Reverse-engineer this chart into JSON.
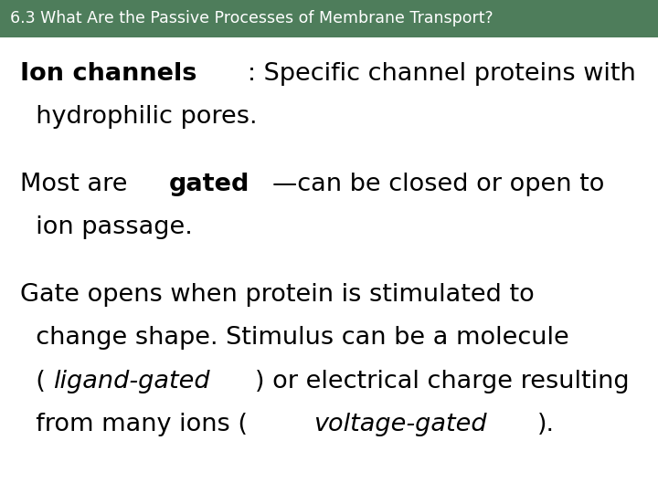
{
  "header_text": "6.3 What Are the Passive Processes of Membrane Transport?",
  "header_bg_color": "#4e7d5b",
  "header_text_color": "#ffffff",
  "body_bg_color": "#ffffff",
  "body_text_color": "#000000",
  "header_fontsize": 12.5,
  "body_fontsize": 19.5,
  "lines": [
    [
      {
        "text": "Ion channels",
        "bold": true,
        "italic": false
      },
      {
        "text": ": Specific channel proteins with",
        "bold": false,
        "italic": false
      }
    ],
    [
      {
        "text": "  hydrophilic pores.",
        "bold": false,
        "italic": false
      }
    ],
    [
      {
        "text": "",
        "bold": false,
        "italic": false
      }
    ],
    [
      {
        "text": "Most are ",
        "bold": false,
        "italic": false
      },
      {
        "text": "gated",
        "bold": true,
        "italic": false
      },
      {
        "text": "—can be closed or open to",
        "bold": false,
        "italic": false
      }
    ],
    [
      {
        "text": "  ion passage.",
        "bold": false,
        "italic": false
      }
    ],
    [
      {
        "text": "",
        "bold": false,
        "italic": false
      }
    ],
    [
      {
        "text": "Gate opens when protein is stimulated to",
        "bold": false,
        "italic": false
      }
    ],
    [
      {
        "text": "  change shape. Stimulus can be a molecule",
        "bold": false,
        "italic": false
      }
    ],
    [
      {
        "text": "  (",
        "bold": false,
        "italic": false
      },
      {
        "text": "ligand-gated",
        "bold": false,
        "italic": true
      },
      {
        "text": ") or electrical charge resulting",
        "bold": false,
        "italic": false
      }
    ],
    [
      {
        "text": "  from many ions (",
        "bold": false,
        "italic": false
      },
      {
        "text": "voltage-gated",
        "bold": false,
        "italic": true
      },
      {
        "text": ").",
        "bold": false,
        "italic": false
      }
    ]
  ]
}
